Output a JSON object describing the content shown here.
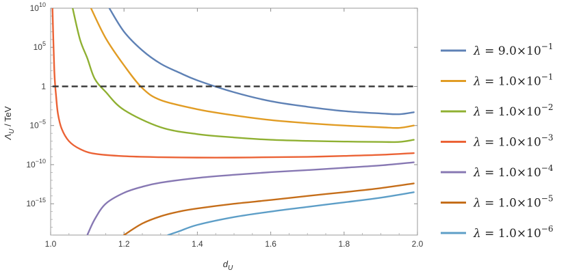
{
  "chart_data": {
    "type": "line",
    "xlabel": {
      "main": "d",
      "sub": "U"
    },
    "ylabel": {
      "main": "Λ",
      "sub": "U",
      "rest": " / TeV"
    },
    "xlim": [
      1.0,
      2.0
    ],
    "ylim_log10": [
      -19.0,
      10.0
    ],
    "y_scale": "log",
    "x_ticks": [
      {
        "v": 1.0,
        "label": "1.0"
      },
      {
        "v": 1.2,
        "label": "1.2"
      },
      {
        "v": 1.4,
        "label": "1.4"
      },
      {
        "v": 1.6,
        "label": "1.6"
      },
      {
        "v": 1.8,
        "label": "1.8"
      },
      {
        "v": 2.0,
        "label": "2.0"
      }
    ],
    "y_ticks": [
      {
        "e": 10,
        "base": "10",
        "exp": "10"
      },
      {
        "e": 5,
        "base": "10",
        "exp": "5"
      },
      {
        "e": 0,
        "base": "1",
        "exp": ""
      },
      {
        "e": -5,
        "base": "10",
        "exp": "−5"
      },
      {
        "e": -10,
        "base": "10",
        "exp": "−10"
      },
      {
        "e": -15,
        "base": "10",
        "exp": "−15"
      }
    ],
    "reference_line": {
      "y": 1,
      "style": "dashed",
      "color": "#333333"
    },
    "legend_position": "right",
    "series": [
      {
        "name": "λ = 9.0×10⁻¹",
        "mantissa": "9.0",
        "exponent": "−1",
        "color": "#5E81B5",
        "points": [
          [
            1.16,
            10000000000.0
          ],
          [
            1.2,
            10000000.0
          ],
          [
            1.25,
            40000.0
          ],
          [
            1.3,
            800.0
          ],
          [
            1.35,
            60.0
          ],
          [
            1.4,
            6
          ],
          [
            1.5,
            0.18
          ],
          [
            1.6,
            0.013
          ],
          [
            1.7,
            0.0025
          ],
          [
            1.8,
            0.0007
          ],
          [
            1.9,
            0.00035
          ],
          [
            1.95,
            0.00028
          ],
          [
            1.99,
            0.0005
          ]
        ]
      },
      {
        "name": "λ = 1.0×10⁻¹",
        "mantissa": "1.0",
        "exponent": "−1",
        "color": "#E19C24",
        "points": [
          [
            1.11,
            10000000000.0
          ],
          [
            1.15,
            1500000.0
          ],
          [
            1.2,
            500.0
          ],
          [
            1.25,
            0.6
          ],
          [
            1.3,
            0.018
          ],
          [
            1.4,
            0.0012
          ],
          [
            1.5,
            0.0002
          ],
          [
            1.6,
            5e-05
          ],
          [
            1.7,
            2e-05
          ],
          [
            1.8,
            1e-05
          ],
          [
            1.9,
            6e-06
          ],
          [
            1.95,
            5e-06
          ],
          [
            1.99,
            1e-05
          ]
        ]
      },
      {
        "name": "λ = 1.0×10⁻²",
        "mantissa": "1.0",
        "exponent": "−2",
        "color": "#8FB032",
        "points": [
          [
            1.06,
            10000000000.0
          ],
          [
            1.08,
            1000000.0
          ],
          [
            1.1,
            4000.0
          ],
          [
            1.12,
            10.0
          ],
          [
            1.15,
            0.2
          ],
          [
            1.2,
            0.001
          ],
          [
            1.3,
            6e-06
          ],
          [
            1.4,
            8e-07
          ],
          [
            1.5,
            3e-07
          ],
          [
            1.6,
            1.5e-07
          ],
          [
            1.7,
            1.1e-07
          ],
          [
            1.8,
            9e-08
          ],
          [
            1.9,
            8e-08
          ],
          [
            1.95,
            8e-08
          ],
          [
            1.99,
            1.5e-07
          ]
        ]
      },
      {
        "name": "λ = 1.0×10⁻³",
        "mantissa": "1.0",
        "exponent": "−3",
        "color": "#EB6235",
        "points": [
          [
            1.005,
            10000000000.0
          ],
          [
            1.01,
            100.0
          ],
          [
            1.015,
            0.05
          ],
          [
            1.02,
            0.0003
          ],
          [
            1.03,
            4e-06
          ],
          [
            1.05,
            1e-07
          ],
          [
            1.08,
            1e-08
          ],
          [
            1.12,
            2.5e-09
          ],
          [
            1.2,
            1.2e-09
          ],
          [
            1.3,
            9e-10
          ],
          [
            1.4,
            8e-10
          ],
          [
            1.5,
            8e-10
          ],
          [
            1.6,
            9e-10
          ],
          [
            1.7,
            1e-09
          ],
          [
            1.8,
            1.3e-09
          ],
          [
            1.9,
            1.8e-09
          ],
          [
            1.99,
            3e-09
          ]
        ]
      },
      {
        "name": "λ = 1.0×10⁻⁴",
        "mantissa": "1.0",
        "exponent": "−4",
        "color": "#8778B3",
        "points": [
          [
            1.1,
            1e-19
          ],
          [
            1.12,
            1e-17
          ],
          [
            1.15,
            1e-15
          ],
          [
            1.2,
            2.5e-14
          ],
          [
            1.25,
            1.5e-13
          ],
          [
            1.3,
            5e-13
          ],
          [
            1.4,
            2e-12
          ],
          [
            1.5,
            5e-12
          ],
          [
            1.6,
            1.1e-11
          ],
          [
            1.7,
            2e-11
          ],
          [
            1.8,
            4e-11
          ],
          [
            1.9,
            8e-11
          ],
          [
            1.99,
            2e-10
          ]
        ]
      },
      {
        "name": "λ = 1.0×10⁻⁵",
        "mantissa": "1.0",
        "exponent": "−5",
        "color": "#C56E1A",
        "points": [
          [
            1.2,
            1e-19
          ],
          [
            1.25,
            3e-18
          ],
          [
            1.3,
            2.5e-17
          ],
          [
            1.35,
            1e-16
          ],
          [
            1.4,
            2.5e-16
          ],
          [
            1.5,
            1e-15
          ],
          [
            1.6,
            3e-15
          ],
          [
            1.7,
            1e-14
          ],
          [
            1.8,
            3e-14
          ],
          [
            1.9,
            1e-13
          ],
          [
            1.99,
            4e-13
          ]
        ]
      },
      {
        "name": "λ = 1.0×10⁻⁶",
        "mantissa": "1.0",
        "exponent": "−6",
        "color": "#5D9EC7",
        "points": [
          [
            1.32,
            1e-19
          ],
          [
            1.35,
            3e-19
          ],
          [
            1.4,
            2e-18
          ],
          [
            1.5,
            2e-17
          ],
          [
            1.6,
            1e-16
          ],
          [
            1.7,
            4e-16
          ],
          [
            1.8,
            1.5e-15
          ],
          [
            1.9,
            6e-15
          ],
          [
            1.99,
            3e-14
          ]
        ]
      }
    ]
  }
}
